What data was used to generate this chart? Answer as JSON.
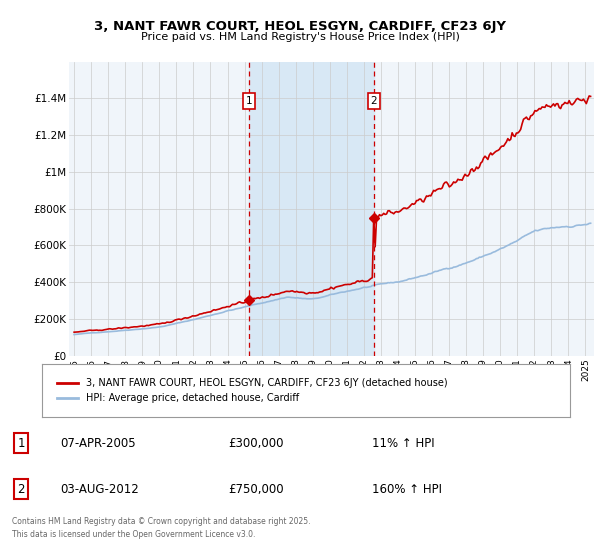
{
  "title": "3, NANT FAWR COURT, HEOL ESGYN, CARDIFF, CF23 6JY",
  "subtitle": "Price paid vs. HM Land Registry's House Price Index (HPI)",
  "hpi_label": "HPI: Average price, detached house, Cardiff",
  "property_label": "3, NANT FAWR COURT, HEOL ESGYN, CARDIFF, CF23 6JY (detached house)",
  "footer": "Contains HM Land Registry data © Crown copyright and database right 2025.\nThis data is licensed under the Open Government Licence v3.0.",
  "xlim": [
    1994.7,
    2025.5
  ],
  "ylim": [
    0,
    1600000
  ],
  "yticks": [
    0,
    200000,
    400000,
    600000,
    800000,
    1000000,
    1200000,
    1400000
  ],
  "ytick_labels": [
    "£0",
    "£200K",
    "£400K",
    "£600K",
    "£800K",
    "£1M",
    "£1.2M",
    "£1.4M"
  ],
  "xticks": [
    1995,
    1996,
    1997,
    1998,
    1999,
    2000,
    2001,
    2002,
    2003,
    2004,
    2005,
    2006,
    2007,
    2008,
    2009,
    2010,
    2011,
    2012,
    2013,
    2014,
    2015,
    2016,
    2017,
    2018,
    2019,
    2020,
    2021,
    2022,
    2023,
    2024,
    2025
  ],
  "property_color": "#cc0000",
  "hpi_color": "#99bbdd",
  "marker1_x": 2005.27,
  "marker1_y": 300000,
  "marker2_x": 2012.59,
  "marker2_y": 750000,
  "vline1_x": 2005.27,
  "vline2_x": 2012.59,
  "sale1_date": "07-APR-2005",
  "sale1_price": "£300,000",
  "sale1_hpi": "11% ↑ HPI",
  "sale2_date": "03-AUG-2012",
  "sale2_price": "£750,000",
  "sale2_hpi": "160% ↑ HPI",
  "plot_bg": "#f0f5fa",
  "shaded_region_color": "#d8e8f5"
}
